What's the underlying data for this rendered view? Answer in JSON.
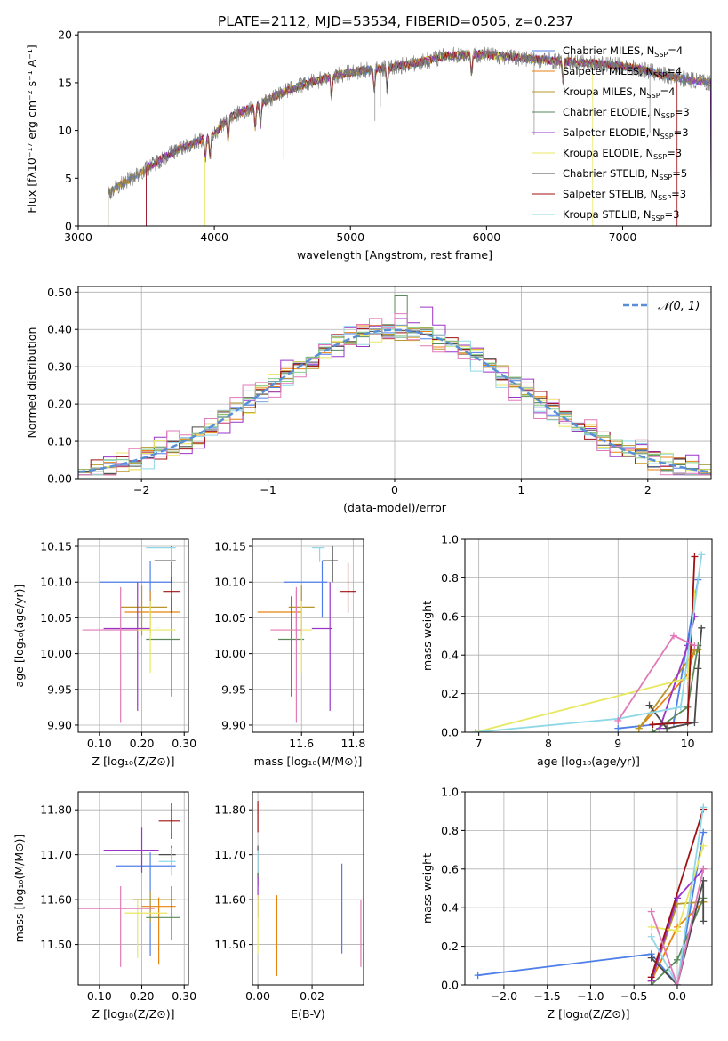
{
  "title": "PLATE=2112, MJD=53534, FIBERID=0505, z=0.237",
  "colors": [
    "#4f7fe8",
    "#e8820f",
    "#b8962b",
    "#5a8a5a",
    "#9a35c8",
    "#e8e860",
    "#4a4a4a",
    "#a01010",
    "#8fd8e8",
    "#e07ab8",
    "#88cc88"
  ],
  "legend": {
    "entries": [
      {
        "label": "Chabrier MILES, N",
        "sub": "SSP",
        "val": "=4",
        "color": "#4f7fe8"
      },
      {
        "label": "Salpeter MILES, N",
        "sub": "SSP",
        "val": "=4",
        "color": "#e8820f"
      },
      {
        "label": "Kroupa MILES, N",
        "sub": "SSP",
        "val": "=4",
        "color": "#b8962b"
      },
      {
        "label": "Chabrier ELODIE, N",
        "sub": "SSP",
        "val": "=3",
        "color": "#5a8a5a"
      },
      {
        "label": "Salpeter ELODIE, N",
        "sub": "SSP",
        "val": "=3",
        "color": "#9a35c8"
      },
      {
        "label": "Kroupa ELODIE, N",
        "sub": "SSP",
        "val": "=3",
        "color": "#e8e860"
      },
      {
        "label": "Chabrier STELIB, N",
        "sub": "SSP",
        "val": "=5",
        "color": "#4a4a4a"
      },
      {
        "label": "Salpeter STELIB, N",
        "sub": "SSP",
        "val": "=3",
        "color": "#a01010"
      },
      {
        "label": "Kroupa STELIB, N",
        "sub": "SSP",
        "val": "=3",
        "color": "#8fd8e8"
      }
    ]
  },
  "chart_data": [
    {
      "id": "spectrum",
      "type": "line",
      "xlabel": "wavelength [Angstrom, rest frame]",
      "ylabel": "Flux [fλ10⁻¹⁷ erg cm⁻² s⁻¹ A⁻¹]",
      "xlim": [
        3000,
        7650
      ],
      "ylim": [
        0,
        20.3
      ],
      "xticks": [
        3000,
        4000,
        5000,
        6000,
        7000
      ],
      "yticks": [
        0,
        5,
        10,
        15,
        20
      ],
      "grid": false,
      "legend": "top-right",
      "continuum": {
        "x": [
          3220,
          3300,
          3500,
          3700,
          3900,
          4000,
          4100,
          4300,
          4500,
          4700,
          4900,
          5100,
          5300,
          5500,
          5700,
          5900,
          6100,
          6300,
          6500,
          6700,
          6900,
          7100,
          7300,
          7500,
          7650
        ],
        "y": [
          3.5,
          4.2,
          6.0,
          7.8,
          9.0,
          9.6,
          11.3,
          12.5,
          14.0,
          15.0,
          15.8,
          16.3,
          16.6,
          17.1,
          17.8,
          18.0,
          17.8,
          17.5,
          17.3,
          17.1,
          16.9,
          16.5,
          15.8,
          15.3,
          15.0
        ]
      },
      "model_starts": [
        3220,
        3220,
        3220,
        3500,
        3500,
        3930,
        3220,
        3500,
        3220
      ],
      "model_ends": [
        7650,
        7650,
        7650,
        7650,
        7650,
        6780,
        7650,
        7400,
        7650
      ]
    },
    {
      "id": "residuals",
      "type": "histogram",
      "xlabel": "(data-model)/error",
      "ylabel": "Normed distribution",
      "xlim": [
        -2.5,
        2.5
      ],
      "ylim": [
        0,
        0.515
      ],
      "xticks": [
        -2,
        -1,
        0,
        1,
        2
      ],
      "yticks": [
        0.0,
        0.1,
        0.2,
        0.3,
        0.4,
        0.5
      ],
      "grid": true,
      "legend": "top-right",
      "reference": {
        "name": "𝒩(0, 1)",
        "mean": 0,
        "sd": 1
      },
      "bin_width": 0.1,
      "variant_amplitude": [
        0.02,
        0.025,
        0.03,
        0.018,
        0.04,
        0.03,
        0.022,
        0.028,
        0.035,
        0.045,
        0.02
      ],
      "peaks": [
        {
          "x": 0.05,
          "y": 0.49
        },
        {
          "x": 0.25,
          "y": 0.46
        }
      ]
    },
    {
      "id": "age_vs_Z",
      "type": "errorbar",
      "xlabel": "Z [log₁₀(Z/Z⊙)]",
      "ylabel": "age  [log₁₀(age/yr)]",
      "xlim": [
        0.05,
        0.31
      ],
      "ylim": [
        9.89,
        10.16
      ],
      "xticks": [
        0.1,
        0.2,
        0.3
      ],
      "yticks": [
        9.9,
        9.95,
        10.0,
        10.05,
        10.1,
        10.15
      ],
      "grid": true,
      "points": [
        {
          "x": 0.22,
          "y": 10.1,
          "xerr": [
            0.12,
            0.05
          ],
          "yerr": [
            0.05,
            0.03
          ],
          "c": "#4f7fe8"
        },
        {
          "x": 0.22,
          "y": 10.058,
          "xerr": [
            0.06,
            0.07
          ],
          "yerr": [
            0.03,
            0.03
          ],
          "c": "#e8820f"
        },
        {
          "x": 0.2,
          "y": 10.065,
          "xerr": [
            0.05,
            0.06
          ],
          "yerr": [
            0.04,
            0.03
          ],
          "c": "#b8962b"
        },
        {
          "x": 0.27,
          "y": 10.02,
          "xerr": [
            0.06,
            0.02
          ],
          "yerr": [
            0.08,
            0.06
          ],
          "c": "#5a8a5a"
        },
        {
          "x": 0.19,
          "y": 10.035,
          "xerr": [
            0.08,
            0.03
          ],
          "yerr": [
            0.115,
            0.065
          ],
          "c": "#9a35c8"
        },
        {
          "x": 0.22,
          "y": 10.033,
          "xerr": [
            0.07,
            0.06
          ],
          "yerr": [
            0.06,
            0.04
          ],
          "c": "#e8e860"
        },
        {
          "x": 0.27,
          "y": 10.13,
          "xerr": [
            0.04,
            0.01
          ],
          "yerr": [
            0.03,
            0.02
          ],
          "c": "#4a4a4a"
        },
        {
          "x": 0.27,
          "y": 10.087,
          "xerr": [
            0.02,
            0.02
          ],
          "yerr": [
            0.03,
            0.02
          ],
          "c": "#a01010"
        },
        {
          "x": 0.27,
          "y": 10.148,
          "xerr": [
            0.06,
            0.01
          ],
          "yerr": [
            0.02,
            0.0
          ],
          "c": "#8fd8e8"
        },
        {
          "x": 0.15,
          "y": 10.033,
          "xerr": [
            0.09,
            0.04
          ],
          "yerr": [
            0.13,
            0.06
          ],
          "c": "#e07ab8"
        }
      ]
    },
    {
      "id": "age_vs_mass",
      "type": "errorbar",
      "xlabel": "mass [log₁₀(M/M⊙)]",
      "ylabel": "",
      "xlim": [
        11.41,
        11.84
      ],
      "ylim": [
        9.89,
        10.16
      ],
      "xticks": [
        11.6,
        11.8
      ],
      "yticks": [
        9.9,
        9.95,
        10.0,
        10.05,
        10.1,
        10.15
      ],
      "grid": true,
      "points": [
        {
          "x": 11.68,
          "y": 10.1,
          "xerr": [
            0.15,
            0.02
          ],
          "yerr": [
            0.05,
            0.03
          ],
          "c": "#4f7fe8"
        },
        {
          "x": 11.58,
          "y": 10.058,
          "xerr": [
            0.15,
            0.02
          ],
          "yerr": [
            0.03,
            0.03
          ],
          "c": "#e8820f"
        },
        {
          "x": 11.6,
          "y": 10.065,
          "xerr": [
            0.05,
            0.05
          ],
          "yerr": [
            0.04,
            0.03
          ],
          "c": "#b8962b"
        },
        {
          "x": 11.56,
          "y": 10.02,
          "xerr": [
            0.05,
            0.05
          ],
          "yerr": [
            0.08,
            0.06
          ],
          "c": "#5a8a5a"
        },
        {
          "x": 11.71,
          "y": 10.035,
          "xerr": [
            0.07,
            0.01
          ],
          "yerr": [
            0.115,
            0.065
          ],
          "c": "#9a35c8"
        },
        {
          "x": 11.6,
          "y": 10.033,
          "xerr": [
            0.1,
            0.04
          ],
          "yerr": [
            0.06,
            0.04
          ],
          "c": "#e8e860"
        },
        {
          "x": 11.72,
          "y": 10.13,
          "xerr": [
            0.04,
            0.02
          ],
          "yerr": [
            0.03,
            0.02
          ],
          "c": "#4a4a4a"
        },
        {
          "x": 11.78,
          "y": 10.087,
          "xerr": [
            0.03,
            0.03
          ],
          "yerr": [
            0.03,
            0.04
          ],
          "c": "#a01010"
        },
        {
          "x": 11.67,
          "y": 10.148,
          "xerr": [
            0.03,
            0.02
          ],
          "yerr": [
            0.02,
            0.0
          ],
          "c": "#8fd8e8"
        },
        {
          "x": 11.58,
          "y": 10.033,
          "xerr": [
            0.1,
            0.02
          ],
          "yerr": [
            0.13,
            0.06
          ],
          "c": "#e07ab8"
        }
      ]
    },
    {
      "id": "weight_vs_age",
      "type": "line",
      "xlabel": "age  [log₁₀(age/yr)]",
      "ylabel": "mass weight",
      "xlim": [
        6.8,
        10.35
      ],
      "ylim": [
        0,
        1.0
      ],
      "xticks": [
        7,
        8,
        9,
        10
      ],
      "yticks": [
        0.0,
        0.2,
        0.4,
        0.6,
        0.8,
        1.0
      ],
      "grid": true,
      "series": [
        {
          "c": "#4f7fe8",
          "x": [
            9.0,
            9.8,
            10.15
          ],
          "y": [
            0.02,
            0.05,
            0.79
          ]
        },
        {
          "c": "#e8820f",
          "x": [
            9.3,
            10.0,
            10.1
          ],
          "y": [
            0.02,
            0.3,
            0.43
          ]
        },
        {
          "c": "#b8962b",
          "x": [
            9.3,
            10.1,
            10.15
          ],
          "y": [
            0.02,
            0.42,
            0.43
          ]
        },
        {
          "c": "#5a8a5a",
          "x": [
            9.5,
            10.0,
            10.15
          ],
          "y": [
            0.0,
            0.13,
            0.45
          ]
        },
        {
          "c": "#9a35c8",
          "x": [
            9.6,
            10.0,
            10.1
          ],
          "y": [
            0.02,
            0.45,
            0.6
          ]
        },
        {
          "c": "#e8e860",
          "x": [
            6.95,
            10.0,
            10.1
          ],
          "y": [
            0.0,
            0.28,
            0.72
          ]
        },
        {
          "c": "#4a4a4a",
          "x": [
            9.45,
            9.7,
            10.1,
            10.15,
            10.2
          ],
          "y": [
            0.14,
            0.02,
            0.05,
            0.33,
            0.54
          ]
        },
        {
          "c": "#a01010",
          "x": [
            9.5,
            10.0,
            10.1
          ],
          "y": [
            0.04,
            0.05,
            0.91
          ]
        },
        {
          "c": "#8fd8e8",
          "x": [
            6.95,
            9.0,
            9.9,
            10.2
          ],
          "y": [
            0.0,
            0.07,
            0.13,
            0.92
          ]
        },
        {
          "c": "#e07ab8",
          "x": [
            9.0,
            9.8,
            10.1
          ],
          "y": [
            0.06,
            0.5,
            0.45
          ]
        }
      ]
    },
    {
      "id": "mass_vs_Z",
      "type": "errorbar",
      "xlabel": "Z [log₁₀(Z/Z⊙)]",
      "ylabel": "mass [log₁₀(M/M⊙)]",
      "xlim": [
        0.05,
        0.31
      ],
      "ylim": [
        11.41,
        11.84
      ],
      "xticks": [
        0.1,
        0.2,
        0.3
      ],
      "yticks": [
        11.5,
        11.6,
        11.7,
        11.8
      ],
      "grid": true,
      "points": [
        {
          "x": 0.22,
          "y": 11.675,
          "xerr": [
            0.08,
            0.06
          ],
          "yerr": [
            0.2,
            0.03
          ],
          "c": "#4f7fe8"
        },
        {
          "x": 0.24,
          "y": 11.585,
          "xerr": [
            0.04,
            0.04
          ],
          "yerr": [
            0.13,
            0.02
          ],
          "c": "#e8820f"
        },
        {
          "x": 0.22,
          "y": 11.6,
          "xerr": [
            0.04,
            0.06
          ],
          "yerr": [
            0.05,
            0.02
          ],
          "c": "#b8962b"
        },
        {
          "x": 0.27,
          "y": 11.56,
          "xerr": [
            0.06,
            0.02
          ],
          "yerr": [
            0.05,
            0.07
          ],
          "c": "#5a8a5a"
        },
        {
          "x": 0.2,
          "y": 11.71,
          "xerr": [
            0.09,
            0.04
          ],
          "yerr": [
            0.05,
            0.05
          ],
          "c": "#9a35c8"
        },
        {
          "x": 0.19,
          "y": 11.57,
          "xerr": [
            0.03,
            0.07
          ],
          "yerr": [
            0.1,
            0.03
          ],
          "c": "#e8e860"
        },
        {
          "x": 0.27,
          "y": 11.7,
          "xerr": [
            0.03,
            0.01
          ],
          "yerr": [
            0.03,
            0.02
          ],
          "c": "#4a4a4a"
        },
        {
          "x": 0.27,
          "y": 11.775,
          "xerr": [
            0.03,
            0.02
          ],
          "yerr": [
            0.04,
            0.04
          ],
          "c": "#a01010"
        },
        {
          "x": 0.27,
          "y": 11.685,
          "xerr": [
            0.03,
            0.01
          ],
          "yerr": [
            0.03,
            0.03
          ],
          "c": "#8fd8e8"
        },
        {
          "x": 0.15,
          "y": 11.58,
          "xerr": [
            0.1,
            0.08
          ],
          "yerr": [
            0.13,
            0.05
          ],
          "c": "#e07ab8"
        }
      ]
    },
    {
      "id": "mass_vs_EBV",
      "type": "errorbar",
      "xlabel": "E(B-V)",
      "ylabel": "",
      "xlim": [
        -0.002,
        0.039
      ],
      "ylim": [
        11.41,
        11.84
      ],
      "xticks": [
        0.0,
        0.02
      ],
      "yticks": [
        11.5,
        11.6,
        11.7,
        11.8
      ],
      "grid": true,
      "points": [
        {
          "x": 0.031,
          "y": 11.58,
          "yerr": [
            0.1,
            0.1
          ],
          "c": "#4f7fe8"
        },
        {
          "x": 0.007,
          "y": 11.53,
          "yerr": [
            0.1,
            0.08
          ],
          "c": "#e8820f"
        },
        {
          "x": 0.0,
          "y": 11.75,
          "yerr": [
            0.0,
            0.07
          ],
          "c": "#a01010"
        },
        {
          "x": 0.0,
          "y": 11.66,
          "yerr": [
            0.03,
            0.06
          ],
          "c": "#4a4a4a"
        },
        {
          "x": 0.0,
          "y": 11.6,
          "yerr": [
            0.04,
            0.05
          ],
          "c": "#9a35c8"
        },
        {
          "x": 0.0,
          "y": 11.55,
          "yerr": [
            0.07,
            0.06
          ],
          "c": "#e8e860"
        },
        {
          "x": 0.038,
          "y": 11.52,
          "yerr": [
            0.07,
            0.08
          ],
          "c": "#e07ab8"
        },
        {
          "x": 0.0,
          "y": 11.68,
          "yerr": [
            0.02,
            0.03
          ],
          "c": "#8fd8e8"
        }
      ]
    },
    {
      "id": "weight_vs_Z",
      "type": "line",
      "xlabel": "Z [log₁₀(Z/Z⊙)]",
      "ylabel": "mass weight",
      "xlim": [
        -2.45,
        0.4
      ],
      "ylim": [
        0,
        1.0
      ],
      "xticks": [
        -2.0,
        -1.5,
        -1.0,
        -0.5,
        0.0
      ],
      "yticks": [
        0.0,
        0.2,
        0.4,
        0.6,
        0.8,
        1.0
      ],
      "grid": true,
      "series": [
        {
          "c": "#4f7fe8",
          "x": [
            -2.3,
            -0.3,
            0.0,
            0.3
          ],
          "y": [
            0.05,
            0.16,
            0.0,
            0.79
          ]
        },
        {
          "c": "#e8820f",
          "x": [
            -0.3,
            0.0,
            0.3
          ],
          "y": [
            0.02,
            0.3,
            0.43
          ]
        },
        {
          "c": "#b8962b",
          "x": [
            -0.3,
            0.0,
            0.3
          ],
          "y": [
            0.02,
            0.42,
            0.43
          ]
        },
        {
          "c": "#5a8a5a",
          "x": [
            -0.3,
            0.0,
            0.3
          ],
          "y": [
            0.0,
            0.13,
            0.45
          ]
        },
        {
          "c": "#9a35c8",
          "x": [
            -0.3,
            0.0,
            0.3
          ],
          "y": [
            0.02,
            0.45,
            0.6
          ]
        },
        {
          "c": "#e8e860",
          "x": [
            -0.3,
            0.0,
            0.3
          ],
          "y": [
            0.3,
            0.28,
            0.72
          ]
        },
        {
          "c": "#4a4a4a",
          "x": [
            -0.3,
            0.0,
            0.3,
            0.3
          ],
          "y": [
            0.14,
            0.0,
            0.54,
            0.33
          ]
        },
        {
          "c": "#a01010",
          "x": [
            -0.3,
            0.3
          ],
          "y": [
            0.04,
            0.91
          ]
        },
        {
          "c": "#8fd8e8",
          "x": [
            -0.3,
            0.0,
            0.3
          ],
          "y": [
            0.25,
            0.0,
            0.92
          ]
        },
        {
          "c": "#e07ab8",
          "x": [
            -0.3,
            0.0,
            0.3
          ],
          "y": [
            0.38,
            0.0,
            0.6
          ]
        }
      ]
    }
  ]
}
